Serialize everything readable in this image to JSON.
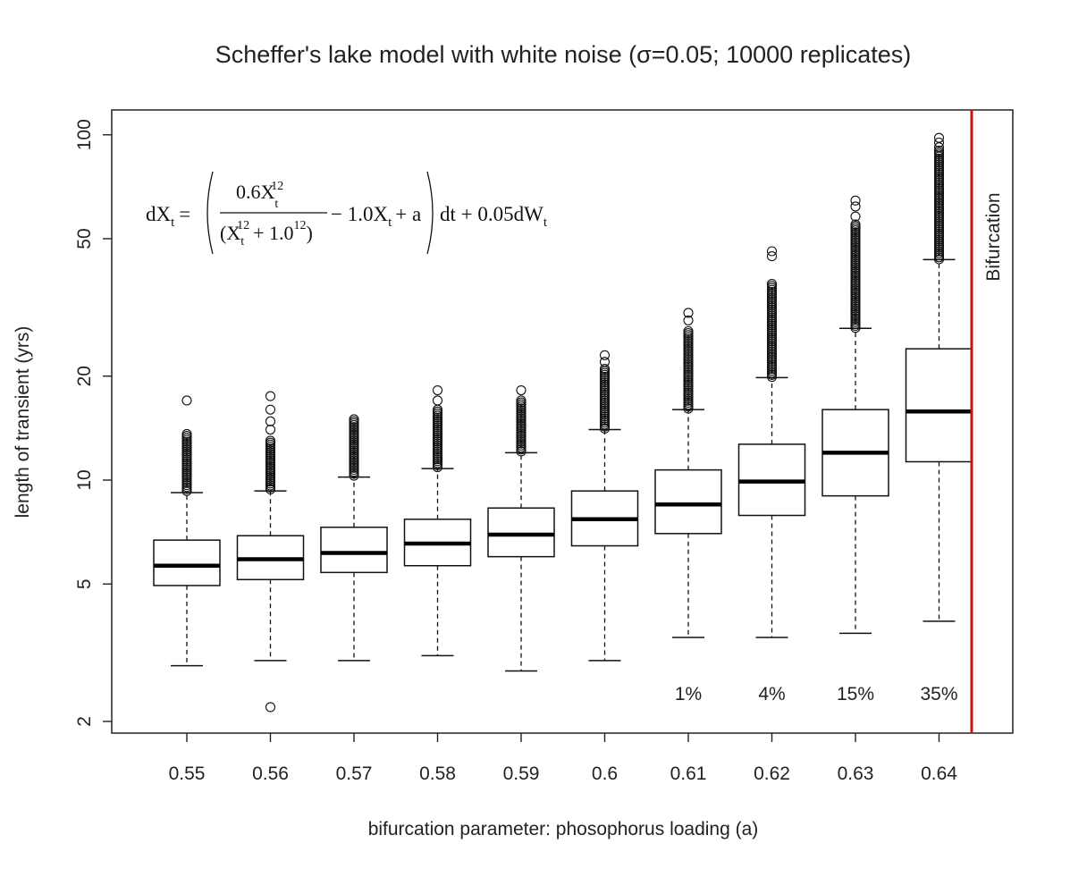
{
  "chart_data": {
    "type": "boxplot",
    "title": "Scheffer's lake model with white noise (σ=0.05; 10000 replicates)",
    "xlabel": "bifurcation parameter: phosophorus loading (a)",
    "ylabel": "length of transient (yrs)",
    "y_scale": "log",
    "ylim": [
      1.85,
      118
    ],
    "y_ticks": [
      "2",
      "5",
      "10",
      "20",
      "50",
      "100"
    ],
    "categories": [
      "0.55",
      "0.56",
      "0.57",
      "0.58",
      "0.59",
      "0.6",
      "0.61",
      "0.62",
      "0.63",
      "0.64"
    ],
    "boxes": [
      {
        "whisker_low": 2.9,
        "q1": 4.95,
        "median": 5.65,
        "q3": 6.7,
        "whisker_high": 9.2,
        "outlier_min": 9.3,
        "outlier_max": 13.6,
        "sparse_outliers": [
          17.0
        ]
      },
      {
        "whisker_low": 3.0,
        "q1": 5.15,
        "median": 5.9,
        "q3": 6.9,
        "whisker_high": 9.3,
        "outlier_min": 9.4,
        "outlier_max": 13.0,
        "sparse_outliers": [
          2.2,
          14.0,
          14.8,
          16.0,
          17.5
        ]
      },
      {
        "whisker_low": 3.0,
        "q1": 5.4,
        "median": 6.15,
        "q3": 7.3,
        "whisker_high": 10.2,
        "outlier_min": 10.3,
        "outlier_max": 15.0,
        "sparse_outliers": []
      },
      {
        "whisker_low": 3.1,
        "q1": 5.65,
        "median": 6.55,
        "q3": 7.7,
        "whisker_high": 10.8,
        "outlier_min": 10.9,
        "outlier_max": 16.0,
        "sparse_outliers": [
          17.0,
          18.2
        ]
      },
      {
        "whisker_low": 2.8,
        "q1": 6.0,
        "median": 6.95,
        "q3": 8.3,
        "whisker_high": 12.0,
        "outlier_min": 12.1,
        "outlier_max": 17.0,
        "sparse_outliers": [
          18.2
        ]
      },
      {
        "whisker_low": 3.0,
        "q1": 6.45,
        "median": 7.7,
        "q3": 9.3,
        "whisker_high": 14.0,
        "outlier_min": 14.1,
        "outlier_max": 21.0,
        "sparse_outliers": [
          22.0,
          23.0
        ]
      },
      {
        "whisker_low": 3.5,
        "q1": 7.0,
        "median": 8.5,
        "q3": 10.7,
        "whisker_high": 16.0,
        "outlier_min": 16.1,
        "outlier_max": 27.0,
        "sparse_outliers": [
          29.0,
          30.5
        ]
      },
      {
        "whisker_low": 3.5,
        "q1": 7.9,
        "median": 9.9,
        "q3": 12.7,
        "whisker_high": 19.8,
        "outlier_min": 19.9,
        "outlier_max": 37.0,
        "sparse_outliers": [
          44.5,
          46.0
        ]
      },
      {
        "whisker_low": 3.6,
        "q1": 9.0,
        "median": 12.0,
        "q3": 16.0,
        "whisker_high": 27.5,
        "outlier_min": 27.6,
        "outlier_max": 55.0,
        "sparse_outliers": [
          58.0,
          62.0,
          64.5
        ]
      },
      {
        "whisker_low": 3.9,
        "q1": 11.3,
        "median": 15.8,
        "q3": 24.0,
        "whisker_high": 43.5,
        "outlier_min": 43.6,
        "outlier_max": 90.0,
        "sparse_outliers": [
          92.0,
          95.0,
          98.0
        ]
      }
    ],
    "percent_labels": [
      {
        "category": "0.61",
        "text": "1%"
      },
      {
        "category": "0.62",
        "text": "4%"
      },
      {
        "category": "0.63",
        "text": "15%"
      },
      {
        "category": "0.64",
        "text": "35%"
      }
    ],
    "bifurcation_line": {
      "label": "Bifurcation",
      "color": "#cc1111"
    },
    "equation": {
      "lhs": "dX",
      "sub_t": "t",
      "eq": "=",
      "num": "0.6X",
      "exp12": "12",
      "den_a": "(X",
      "den_b": "+ 1.0",
      "den_c": ")",
      "mid": "− 1.0X",
      "plus_a": "+ a",
      "tail": "dt + 0.05dW"
    },
    "grid": false,
    "legend": "none"
  }
}
